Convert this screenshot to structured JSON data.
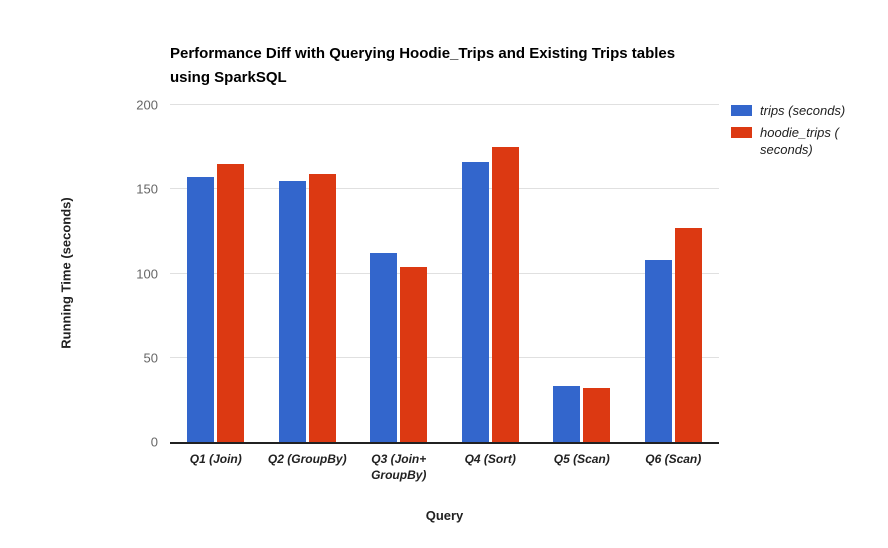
{
  "chart_data": {
    "type": "bar",
    "title": "Performance Diff with Querying Hoodie_Trips and Existing Trips tables\nusing SparkSQL",
    "xlabel": "Query",
    "ylabel": "Running Time (seconds)",
    "ylim": [
      0,
      200
    ],
    "yticks": [
      0,
      50,
      100,
      150,
      200
    ],
    "categories": [
      "Q1 (Join)",
      "Q2 (GroupBy)",
      "Q3 (Join+\nGroupBy)",
      "Q4 (Sort)",
      "Q5 (Scan)",
      "Q6 (Scan)"
    ],
    "series": [
      {
        "name": "trips (seconds)",
        "color": "#3366CC",
        "values": [
          157,
          155,
          112,
          166,
          33,
          108
        ]
      },
      {
        "name": "hoodie_trips (\nseconds)",
        "color": "#DC3912",
        "values": [
          165,
          159,
          104,
          175,
          32,
          127
        ]
      }
    ],
    "legend_position": "right",
    "grid": true,
    "colors": {
      "gridline": "#e0e0e0",
      "baseline": "#212121",
      "tick_label": "#666666",
      "axis_label": "#212121",
      "title": "#000000",
      "background": "#ffffff"
    }
  }
}
